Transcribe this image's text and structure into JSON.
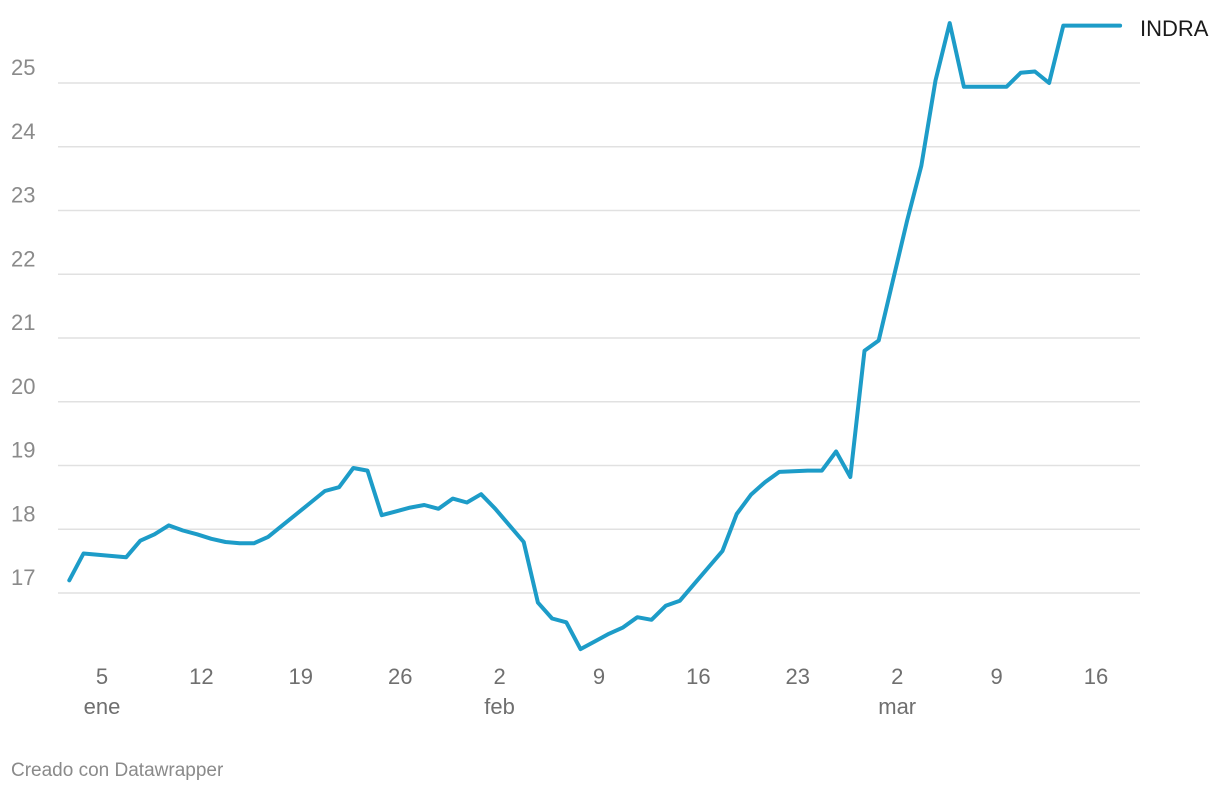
{
  "chart_data": {
    "type": "line",
    "title": "",
    "xlabel": "",
    "ylabel": "",
    "ylim": [
      16,
      26
    ],
    "y_ticks": [
      17,
      18,
      19,
      20,
      21,
      22,
      23,
      24,
      25
    ],
    "x_tick_labels": [
      {
        "day": 5,
        "label": "5",
        "month": "ene"
      },
      {
        "day": 12,
        "label": "12"
      },
      {
        "day": 19,
        "label": "19"
      },
      {
        "day": 26,
        "label": "26"
      },
      {
        "day": 33,
        "label": "2",
        "month": "feb"
      },
      {
        "day": 40,
        "label": "9"
      },
      {
        "day": 47,
        "label": "16"
      },
      {
        "day": 54,
        "label": "23"
      },
      {
        "day": 61,
        "label": "2",
        "month": "mar"
      },
      {
        "day": 68,
        "label": "9"
      },
      {
        "day": 75,
        "label": "16"
      }
    ],
    "grid": true,
    "line_color": "#1d9cc8",
    "series": [
      {
        "name": "INDRA",
        "x": [
          2.7,
          3.7,
          4.7,
          5.7,
          6.7,
          7.7,
          8.7,
          9.7,
          10.7,
          11.7,
          12.7,
          13.7,
          14.7,
          15.7,
          16.7,
          17.7,
          18.7,
          19.7,
          20.7,
          21.7,
          22.7,
          23.7,
          24.7,
          25.7,
          26.7,
          27.7,
          28.7,
          29.7,
          30.7,
          31.7,
          32.7,
          33.7,
          34.7,
          35.7,
          36.7,
          37.7,
          38.7,
          39.7,
          40.7,
          41.7,
          42.7,
          43.7,
          44.7,
          45.7,
          46.7,
          47.7,
          48.7,
          49.7,
          50.7,
          51.7,
          52.7,
          53.7,
          54.7,
          55.7,
          56.7,
          57.7,
          58.7,
          59.7,
          60.7,
          61.7,
          62.7,
          63.7,
          64.7,
          65.7,
          66.7,
          67.7,
          68.7,
          69.7,
          70.7,
          71.7,
          72.7,
          73.7,
          74.7,
          75.7,
          76.7
        ],
        "y": [
          17.2,
          17.62,
          17.6,
          17.58,
          17.56,
          17.82,
          17.92,
          18.06,
          17.98,
          17.92,
          17.85,
          17.8,
          17.78,
          17.78,
          17.88,
          18.06,
          18.24,
          18.42,
          18.6,
          18.66,
          18.96,
          18.92,
          18.22,
          18.28,
          18.34,
          18.38,
          18.32,
          18.48,
          18.42,
          18.55,
          18.32,
          18.06,
          17.8,
          16.85,
          16.6,
          16.54,
          16.12,
          16.24,
          16.36,
          16.46,
          16.62,
          16.58,
          16.8,
          16.88,
          17.14,
          17.4,
          17.66,
          18.24,
          18.54,
          18.74,
          18.9,
          18.91,
          18.92,
          18.92,
          19.22,
          18.82,
          20.8,
          20.96,
          21.9,
          22.84,
          23.7,
          25.04,
          25.94,
          24.94,
          24.94,
          24.94,
          24.94,
          25.16,
          25.18,
          25.0,
          25.9,
          25.9,
          25.9,
          25.9,
          25.9
        ]
      }
    ]
  },
  "footer": {
    "credit": "Creado con Datawrapper"
  }
}
